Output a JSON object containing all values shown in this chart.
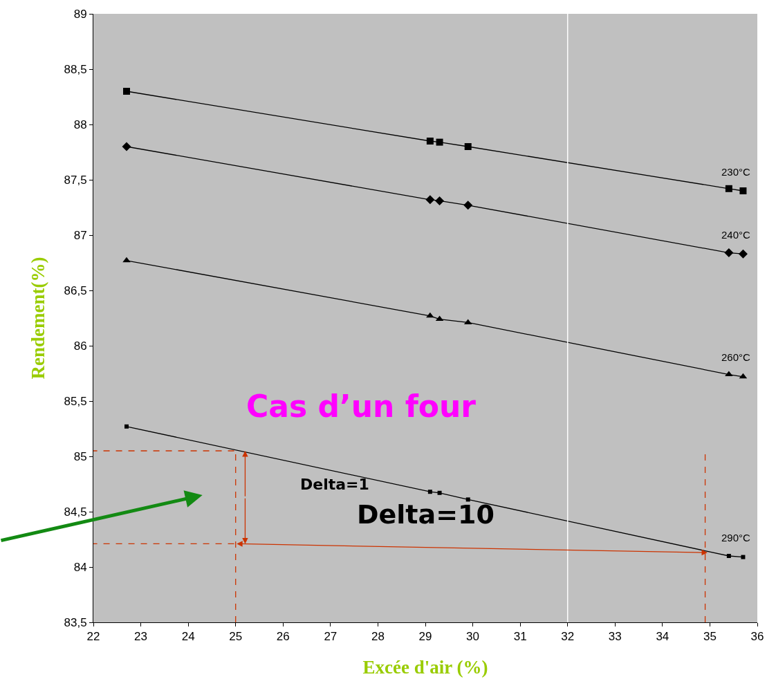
{
  "chart_data": {
    "type": "line",
    "xlabel": "Excée d'air (%)",
    "ylabel": "Rendement(%)",
    "x": [
      22.7,
      29.1,
      29.3,
      29.9,
      35.4,
      35.7
    ],
    "series": [
      {
        "name": "230°C",
        "color": "#000000",
        "marker": "square",
        "values": [
          88.3,
          87.85,
          87.84,
          87.8,
          87.42,
          87.4
        ]
      },
      {
        "name": "240°C",
        "color": "#000000",
        "marker": "diamond",
        "values": [
          87.8,
          87.32,
          87.31,
          87.27,
          86.84,
          86.83
        ]
      },
      {
        "name": "260°C",
        "color": "#000000",
        "marker": "triangle",
        "values": [
          86.77,
          86.27,
          86.24,
          86.21,
          85.74,
          85.72
        ]
      },
      {
        "name": "290°C",
        "color": "#000000",
        "marker": "square",
        "values": [
          85.27,
          84.68,
          84.67,
          84.61,
          84.1,
          84.09
        ]
      }
    ],
    "xlim": [
      22,
      36
    ],
    "xticks": [
      22,
      23,
      24,
      25,
      26,
      27,
      28,
      29,
      30,
      31,
      32,
      33,
      34,
      35,
      36
    ],
    "ylim": [
      83.5,
      89
    ],
    "yticks": [
      {
        "value": 83.5,
        "label": "83,5"
      },
      84,
      {
        "value": 84.5,
        "label": "84,5"
      },
      85,
      {
        "value": 85.5,
        "label": "85,5"
      },
      86,
      {
        "value": 86.5,
        "label": "86,5"
      },
      87,
      {
        "value": 87.5,
        "label": "87,5"
      },
      88,
      {
        "value": 88.5,
        "label": "88,5"
      },
      89
    ],
    "ref_lines": [
      {
        "axis": "x",
        "value": 32,
        "color": "#ffffff",
        "line_style": "solid"
      },
      {
        "axis": "x",
        "value": 25,
        "color": "#cc3300",
        "line_style": "dashed"
      },
      {
        "axis": "x",
        "value": 34.9,
        "color": "#cc3300",
        "line_style": "dashed"
      },
      {
        "axis": "y",
        "value": 85.05,
        "color": "#cc3300",
        "line_style": "dashed"
      },
      {
        "axis": "y",
        "value": 84.21,
        "color": "#cc3300",
        "line_style": "dashed"
      }
    ],
    "annotations": [
      "Cas d’un four",
      "Delta=1",
      "Delta=10"
    ],
    "grid": false,
    "legend": false,
    "line_style": "solid"
  }
}
